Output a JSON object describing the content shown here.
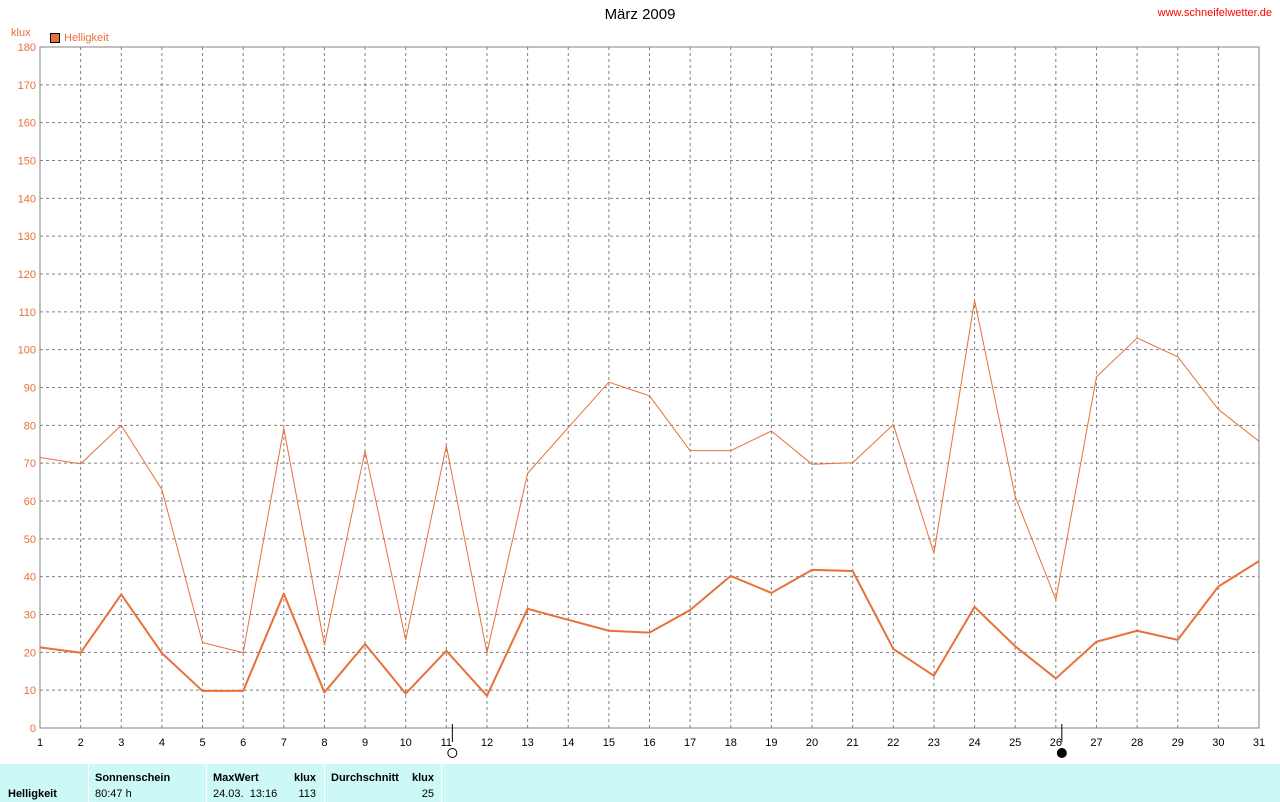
{
  "header": {
    "title": "März 2009",
    "site": "www.schneifelwetter.de",
    "unit": "klux",
    "legend_label": "Helligkeit"
  },
  "colors": {
    "series": "#e8703a",
    "grid": "#808080",
    "footer_bg": "#ccf8f6"
  },
  "chart_data": {
    "type": "line",
    "title": "März 2009",
    "ylabel": "klux",
    "xlabel": "",
    "ylim": [
      0,
      180
    ],
    "yticks": [
      0,
      10,
      20,
      30,
      40,
      50,
      60,
      70,
      80,
      90,
      100,
      110,
      120,
      130,
      140,
      150,
      160,
      170,
      180
    ],
    "x": [
      1,
      2,
      3,
      4,
      5,
      6,
      7,
      8,
      9,
      10,
      11,
      12,
      13,
      14,
      15,
      16,
      17,
      18,
      19,
      20,
      21,
      22,
      23,
      24,
      25,
      26,
      27,
      28,
      29,
      30,
      31
    ],
    "grid": true,
    "legend_position": "top-left",
    "series": [
      {
        "name": "Helligkeit",
        "style": "thick",
        "values": [
          21.3,
          19.9,
          35.3,
          19.8,
          9.8,
          9.8,
          35.5,
          9.4,
          22.2,
          9.1,
          20.4,
          8.5,
          31.5,
          28.6,
          25.7,
          25.2,
          31.2,
          40.2,
          35.7,
          41.8,
          41.5,
          20.9,
          13.8,
          32.0,
          21.6,
          13.1,
          22.8,
          25.7,
          23.3,
          37.4,
          44.1
        ]
      },
      {
        "name": "Helligkeit",
        "style": "thin",
        "values": [
          71.5,
          69.8,
          80.0,
          63.0,
          22.6,
          19.9,
          79.2,
          21.9,
          73.3,
          23.3,
          74.6,
          19.9,
          67.3,
          79.4,
          91.4,
          87.8,
          73.3,
          73.3,
          78.5,
          69.7,
          70.1,
          80.2,
          46.2,
          113.0,
          61.2,
          33.9,
          92.8,
          103.1,
          98.1,
          84.2,
          75.8
        ]
      }
    ],
    "moon_phases": [
      {
        "day": 11,
        "phase": "full-moon"
      },
      {
        "day": 26,
        "phase": "new-moon"
      }
    ]
  },
  "footer": {
    "row_label": "Helligkeit",
    "sunshine_header": "Sonnenschein",
    "sunshine_value": "80:47 h",
    "max_header": "MaxWert",
    "max_unit": "klux",
    "max_time": "24.03.  13:16",
    "max_value": "113",
    "avg_header": "Durchschnitt",
    "avg_unit": "klux",
    "avg_value": "25"
  }
}
